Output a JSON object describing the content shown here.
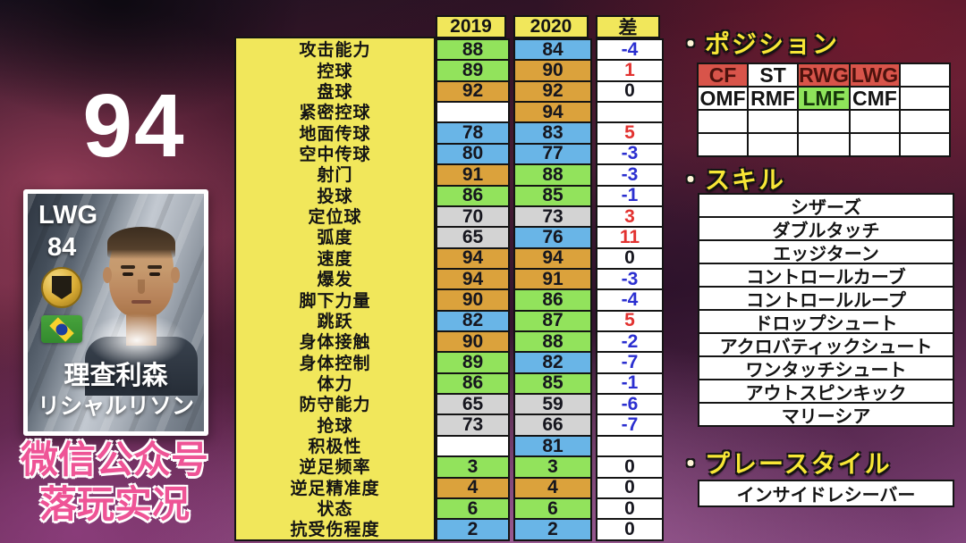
{
  "left": {
    "overall_rating": "94",
    "card": {
      "position": "LWG",
      "rating": "84",
      "name_cn": "理查利森",
      "name_jp": "リシャルリソン"
    },
    "watermark_line1": "微信公众号",
    "watermark_line2": "落玩实况"
  },
  "table": {
    "headers": {
      "col2019": "2019",
      "col2020": "2020",
      "diff": "差"
    },
    "rows": [
      {
        "label": "攻击能力",
        "v2019": "88",
        "c2019": "green",
        "v2020": "84",
        "c2020": "blue",
        "diff": "-4",
        "dcolor": "neg"
      },
      {
        "label": "控球",
        "v2019": "89",
        "c2019": "green",
        "v2020": "90",
        "c2020": "orange",
        "diff": "1",
        "dcolor": "pos"
      },
      {
        "label": "盘球",
        "v2019": "92",
        "c2019": "orange",
        "v2020": "92",
        "c2020": "orange",
        "diff": "0",
        "dcolor": "zero"
      },
      {
        "label": "紧密控球",
        "v2019": "",
        "c2019": "white",
        "v2020": "94",
        "c2020": "orange",
        "diff": "",
        "dcolor": "none"
      },
      {
        "label": "地面传球",
        "v2019": "78",
        "c2019": "blue",
        "v2020": "83",
        "c2020": "blue",
        "diff": "5",
        "dcolor": "pos"
      },
      {
        "label": "空中传球",
        "v2019": "80",
        "c2019": "blue",
        "v2020": "77",
        "c2020": "blue",
        "diff": "-3",
        "dcolor": "neg"
      },
      {
        "label": "射门",
        "v2019": "91",
        "c2019": "orange",
        "v2020": "88",
        "c2020": "green",
        "diff": "-3",
        "dcolor": "neg"
      },
      {
        "label": "投球",
        "v2019": "86",
        "c2019": "green",
        "v2020": "85",
        "c2020": "green",
        "diff": "-1",
        "dcolor": "neg"
      },
      {
        "label": "定位球",
        "v2019": "70",
        "c2019": "gray",
        "v2020": "73",
        "c2020": "gray",
        "diff": "3",
        "dcolor": "pos"
      },
      {
        "label": "弧度",
        "v2019": "65",
        "c2019": "gray",
        "v2020": "76",
        "c2020": "blue",
        "diff": "11",
        "dcolor": "pos"
      },
      {
        "label": "速度",
        "v2019": "94",
        "c2019": "orange",
        "v2020": "94",
        "c2020": "orange",
        "diff": "0",
        "dcolor": "zero"
      },
      {
        "label": "爆发",
        "v2019": "94",
        "c2019": "orange",
        "v2020": "91",
        "c2020": "orange",
        "diff": "-3",
        "dcolor": "neg"
      },
      {
        "label": "脚下力量",
        "v2019": "90",
        "c2019": "orange",
        "v2020": "86",
        "c2020": "green",
        "diff": "-4",
        "dcolor": "neg"
      },
      {
        "label": "跳跃",
        "v2019": "82",
        "c2019": "blue",
        "v2020": "87",
        "c2020": "green",
        "diff": "5",
        "dcolor": "pos"
      },
      {
        "label": "身体接触",
        "v2019": "90",
        "c2019": "orange",
        "v2020": "88",
        "c2020": "green",
        "diff": "-2",
        "dcolor": "neg"
      },
      {
        "label": "身体控制",
        "v2019": "89",
        "c2019": "green",
        "v2020": "82",
        "c2020": "blue",
        "diff": "-7",
        "dcolor": "neg"
      },
      {
        "label": "体力",
        "v2019": "86",
        "c2019": "green",
        "v2020": "85",
        "c2020": "green",
        "diff": "-1",
        "dcolor": "neg"
      },
      {
        "label": "防守能力",
        "v2019": "65",
        "c2019": "gray",
        "v2020": "59",
        "c2020": "gray",
        "diff": "-6",
        "dcolor": "neg"
      },
      {
        "label": "抢球",
        "v2019": "73",
        "c2019": "gray",
        "v2020": "66",
        "c2020": "gray",
        "diff": "-7",
        "dcolor": "neg"
      },
      {
        "label": "积极性",
        "v2019": "",
        "c2019": "white",
        "v2020": "81",
        "c2020": "blue",
        "diff": "",
        "dcolor": "none"
      },
      {
        "label": "逆足频率",
        "v2019": "3",
        "c2019": "green",
        "v2020": "3",
        "c2020": "green",
        "diff": "0",
        "dcolor": "zero"
      },
      {
        "label": "逆足精准度",
        "v2019": "4",
        "c2019": "orange",
        "v2020": "4",
        "c2020": "orange",
        "diff": "0",
        "dcolor": "zero"
      },
      {
        "label": "状态",
        "v2019": "6",
        "c2019": "green",
        "v2020": "6",
        "c2020": "green",
        "diff": "0",
        "dcolor": "zero"
      },
      {
        "label": "抗受伤程度",
        "v2019": "2",
        "c2019": "blue",
        "v2020": "2",
        "c2020": "blue",
        "diff": "0",
        "dcolor": "zero"
      }
    ]
  },
  "right": {
    "positions": {
      "bullet": "・",
      "title": "ポジション",
      "cells": [
        {
          "label": "CF",
          "bg": "red"
        },
        {
          "label": "ST",
          "bg": "white"
        },
        {
          "label": "RWG",
          "bg": "red"
        },
        {
          "label": "LWG",
          "bg": "red"
        },
        {
          "label": "",
          "bg": "white"
        },
        {
          "label": "OMF",
          "bg": "white"
        },
        {
          "label": "RMF",
          "bg": "white"
        },
        {
          "label": "LMF",
          "bg": "green"
        },
        {
          "label": "CMF",
          "bg": "white"
        },
        {
          "label": "",
          "bg": "white"
        },
        {
          "label": "",
          "bg": "white"
        },
        {
          "label": "",
          "bg": "white"
        },
        {
          "label": "",
          "bg": "white"
        },
        {
          "label": "",
          "bg": "white"
        },
        {
          "label": "",
          "bg": "white"
        },
        {
          "label": "",
          "bg": "white"
        },
        {
          "label": "",
          "bg": "white"
        },
        {
          "label": "",
          "bg": "white"
        },
        {
          "label": "",
          "bg": "white"
        },
        {
          "label": "",
          "bg": "white"
        }
      ]
    },
    "skills": {
      "bullet": "・",
      "title": "スキル",
      "items": [
        {
          "label": "シザーズ"
        },
        {
          "label": "ダブルタッチ"
        },
        {
          "label": "エッジターン"
        },
        {
          "label": "コントロールカーブ"
        },
        {
          "label": "コントロールループ"
        },
        {
          "label": "ドロップシュート"
        },
        {
          "label": "アクロバティックシュート"
        },
        {
          "label": "ワンタッチシュート"
        },
        {
          "label": "アウトスピンキック"
        },
        {
          "label": "マリーシア"
        }
      ]
    },
    "playstyle": {
      "bullet": "・",
      "title": "プレースタイル",
      "items": [
        {
          "label": "インサイドレシーバー"
        }
      ]
    }
  },
  "colors": {
    "cell_green": "#92e35c",
    "cell_blue": "#69b5e7",
    "cell_orange": "#dba23c",
    "cell_gray": "#d3d3d3",
    "cell_yellow": "#f1e75b",
    "position_red": "#d8544a",
    "position_green": "#8ee45a",
    "diff_negative": "#2b2fd0",
    "diff_positive": "#e23230",
    "section_title_yellow": "#f7e636",
    "watermark_pink": "#ee5496"
  }
}
